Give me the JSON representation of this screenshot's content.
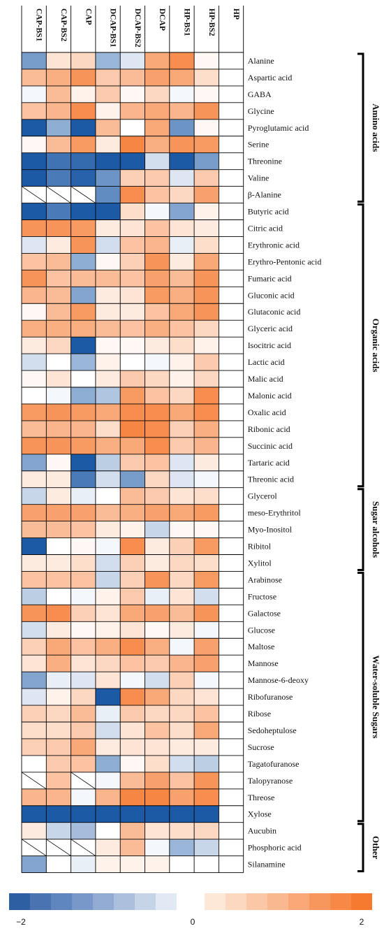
{
  "chart_data": {
    "type": "heatmap",
    "columns": [
      "CAP-BS1",
      "CAP-BS2",
      "CAP",
      "DCAP-BS1",
      "DCAP-BS2",
      "DCAP",
      "HP-BS1",
      "HP-BS2",
      "HP"
    ],
    "rows": [
      "Alanine",
      "Aspartic acid",
      "GABA",
      "Glycine",
      "Pyroglutamic acid",
      "Serine",
      "Threonine",
      "Valine",
      "β-Alanine",
      "Butyric acid",
      "Citric acid",
      "Erythronic acid",
      "Erythro-Pentonic acid",
      "Fumaric acid",
      "Gluconic acid",
      "Glutaconic acid",
      "Glyceric acid",
      "Isocitric acid",
      "Lactic acid",
      "Malic acid",
      "Malonic acid",
      "Oxalic acid",
      "Ribonic acid",
      "Succinic acid",
      "Tartaric acid",
      "Threonic acid",
      "Glycerol",
      "meso-Erythritol",
      "Myo-Inositol",
      "Ribitol",
      "Xylitol",
      "Arabinose",
      "Fructose",
      "Galactose",
      "Glucose",
      "Maltose",
      "Mannose",
      "Mannose-6-deoxy",
      "Ribofuranose",
      "Ribose",
      "Sedoheptulose",
      "Sucrose",
      "Tagatofuranose",
      "Talopyranose",
      "Threose",
      "Xylose",
      "Aucubin",
      "Phosphoric acid",
      "Silanamine"
    ],
    "values": [
      [
        -1.2,
        0.4,
        0.6,
        -0.9,
        -0.3,
        1.3,
        1.7,
        0.1,
        0
      ],
      [
        1.0,
        1.2,
        1.6,
        0.8,
        1.0,
        1.4,
        1.3,
        0.5,
        0
      ],
      [
        -0.1,
        1.0,
        0.2,
        0.8,
        0.1,
        0.6,
        -0.1,
        0.1,
        0
      ],
      [
        0.9,
        1.1,
        1.7,
        0.2,
        1.1,
        1.3,
        1.1,
        1.6,
        0
      ],
      [
        -2.0,
        -1.0,
        -2.0,
        1.0,
        0.0,
        1.3,
        -1.3,
        0.1,
        0
      ],
      [
        0.1,
        1.0,
        1.5,
        0.3,
        1.8,
        1.2,
        1.6,
        1.5,
        0
      ],
      [
        -2.0,
        -1.7,
        -1.8,
        -2.0,
        -2.0,
        -0.4,
        -2.0,
        -1.2,
        0
      ],
      [
        -2.0,
        -1.6,
        -1.9,
        -1.3,
        0.7,
        0.8,
        -0.3,
        0.8,
        0
      ],
      [
        null,
        null,
        null,
        -1.4,
        1.7,
        0.9,
        0.6,
        1.4,
        0
      ],
      [
        -2.0,
        -1.6,
        -2.0,
        -2.0,
        0.5,
        -0.1,
        -1.1,
        0.2,
        0
      ],
      [
        1.6,
        1.6,
        1.5,
        0.3,
        0.4,
        0.9,
        0.4,
        0.3,
        0
      ],
      [
        -0.3,
        0.3,
        1.6,
        -0.4,
        0.9,
        1.1,
        -0.2,
        0.5,
        0
      ],
      [
        0.9,
        1.0,
        -1.0,
        0.1,
        0.7,
        1.6,
        0.3,
        1.3,
        0
      ],
      [
        1.6,
        0.9,
        1.0,
        1.0,
        0.9,
        1.4,
        1.0,
        1.6,
        0
      ],
      [
        1.1,
        1.0,
        -1.1,
        0.3,
        0.4,
        1.5,
        1.2,
        1.6,
        0
      ],
      [
        0.1,
        1.0,
        1.5,
        0.3,
        0.3,
        0.9,
        1.3,
        1.6,
        0
      ],
      [
        1.2,
        1.2,
        1.2,
        1.0,
        0.9,
        1.2,
        0.9,
        0.6,
        0
      ],
      [
        0.3,
        0.6,
        -2.0,
        0.1,
        0.1,
        0.3,
        0.5,
        0.2,
        0
      ],
      [
        -0.4,
        0.0,
        -0.9,
        0.2,
        0.0,
        -0.1,
        0.2,
        0.8,
        0
      ],
      [
        0.1,
        0.4,
        0.0,
        0.3,
        0.8,
        0.6,
        0.2,
        0.6,
        0
      ],
      [
        0.0,
        -0.1,
        -1.0,
        -0.7,
        1.5,
        0.9,
        0.6,
        1.7,
        0
      ],
      [
        1.5,
        1.6,
        1.5,
        1.3,
        1.7,
        1.7,
        1.3,
        1.7,
        0
      ],
      [
        1.0,
        1.1,
        1.1,
        0.5,
        1.8,
        1.7,
        0.7,
        1.2,
        0
      ],
      [
        1.6,
        1.6,
        1.5,
        1.2,
        1.3,
        1.7,
        0.8,
        1.1,
        0
      ],
      [
        -1.1,
        0.1,
        -2.0,
        -0.6,
        0.8,
        0.9,
        -0.3,
        0.3,
        0
      ],
      [
        0.3,
        0.3,
        -1.6,
        -0.4,
        -1.2,
        0.6,
        -0.3,
        -0.1,
        0
      ],
      [
        -0.5,
        0.3,
        -0.2,
        0.0,
        1.0,
        0.8,
        0.4,
        0.5,
        0
      ],
      [
        1.4,
        1.4,
        1.4,
        1.0,
        1.2,
        1.4,
        1.3,
        1.5,
        0
      ],
      [
        1.0,
        1.0,
        0.9,
        0.3,
        0.2,
        -0.5,
        0.1,
        0.1,
        0
      ],
      [
        -2.0,
        0.0,
        0.1,
        -0.1,
        1.7,
        0.3,
        0.7,
        1.5,
        0
      ],
      [
        0.3,
        0.3,
        0.5,
        -0.4,
        0.7,
        0.3,
        0.6,
        0.5,
        0
      ],
      [
        0.9,
        0.9,
        0.9,
        -0.5,
        0.7,
        1.6,
        0.6,
        1.5,
        0
      ],
      [
        -0.6,
        0.0,
        -0.1,
        0.2,
        0.8,
        -0.2,
        0.4,
        -0.4,
        0
      ],
      [
        1.6,
        1.7,
        0.7,
        0.4,
        1.3,
        1.4,
        1.0,
        1.6,
        0
      ],
      [
        -0.4,
        0.3,
        0.1,
        0.2,
        0.4,
        0.1,
        0.3,
        -0.1,
        0
      ],
      [
        0.7,
        1.3,
        0.9,
        1.2,
        1.7,
        1.2,
        -0.1,
        1.4,
        0
      ],
      [
        0.4,
        1.2,
        0.4,
        0.6,
        0.9,
        0.8,
        1.1,
        1.4,
        0
      ],
      [
        -1.1,
        -0.2,
        -0.3,
        0.4,
        -0.1,
        -0.4,
        0.7,
        -0.1,
        0
      ],
      [
        -0.3,
        0.2,
        0.6,
        -2.0,
        1.7,
        1.3,
        0.6,
        0.4,
        0
      ],
      [
        0.7,
        0.6,
        1.0,
        -0.2,
        0.8,
        0.6,
        0.6,
        0.9,
        0
      ],
      [
        0.5,
        0.5,
        0.8,
        -0.4,
        0.4,
        0.9,
        0.5,
        1.3,
        0
      ],
      [
        0.7,
        0.8,
        1.3,
        0.3,
        0.4,
        0.4,
        0.3,
        0.3,
        0
      ],
      [
        0.0,
        0.8,
        0.9,
        -1.0,
        0.1,
        0.5,
        -0.4,
        -0.6,
        0
      ],
      [
        null,
        0.9,
        null,
        -0.1,
        1.0,
        1.4,
        0.9,
        1.6,
        0
      ],
      [
        1.1,
        1.1,
        -0.1,
        1.1,
        1.8,
        1.8,
        1.4,
        1.7,
        0
      ],
      [
        -2.0,
        -2.0,
        -2.0,
        -2.0,
        -2.0,
        -2.0,
        -2.0,
        -2.0,
        0
      ],
      [
        0.3,
        -0.5,
        -0.8,
        0.0,
        1.0,
        0.4,
        0.5,
        0.6,
        0
      ],
      [
        null,
        null,
        null,
        0.3,
        1.0,
        -0.1,
        -0.9,
        -0.5,
        0
      ],
      [
        -1.1,
        0.0,
        -0.2,
        0.2,
        0.2,
        0.2,
        0.0,
        0.0,
        0
      ]
    ],
    "groups": [
      {
        "label": "Amino acids",
        "start": 0,
        "end": 8
      },
      {
        "label": "Organic acids",
        "start": 9,
        "end": 25
      },
      {
        "label": "Sugar alcohols",
        "start": 26,
        "end": 30
      },
      {
        "label": "Water-soluble Sugars",
        "start": 31,
        "end": 45
      },
      {
        "label": "Other",
        "start": 46,
        "end": 48
      }
    ],
    "colorbar": {
      "min": -2,
      "max": 2,
      "tick_labels": [
        "−2",
        "0",
        "2"
      ],
      "negative_colors": [
        "#2e5fa3",
        "#4a74b1",
        "#5f86be",
        "#7898c9",
        "#91abd3",
        "#acc0de",
        "#c6d4e8",
        "#e0e8f3"
      ],
      "positive_colors": [
        "#fde8d8",
        "#fcd8c0",
        "#fbc8a7",
        "#fab88e",
        "#f9a776",
        "#f8975d",
        "#f78845",
        "#f5792f"
      ]
    }
  }
}
